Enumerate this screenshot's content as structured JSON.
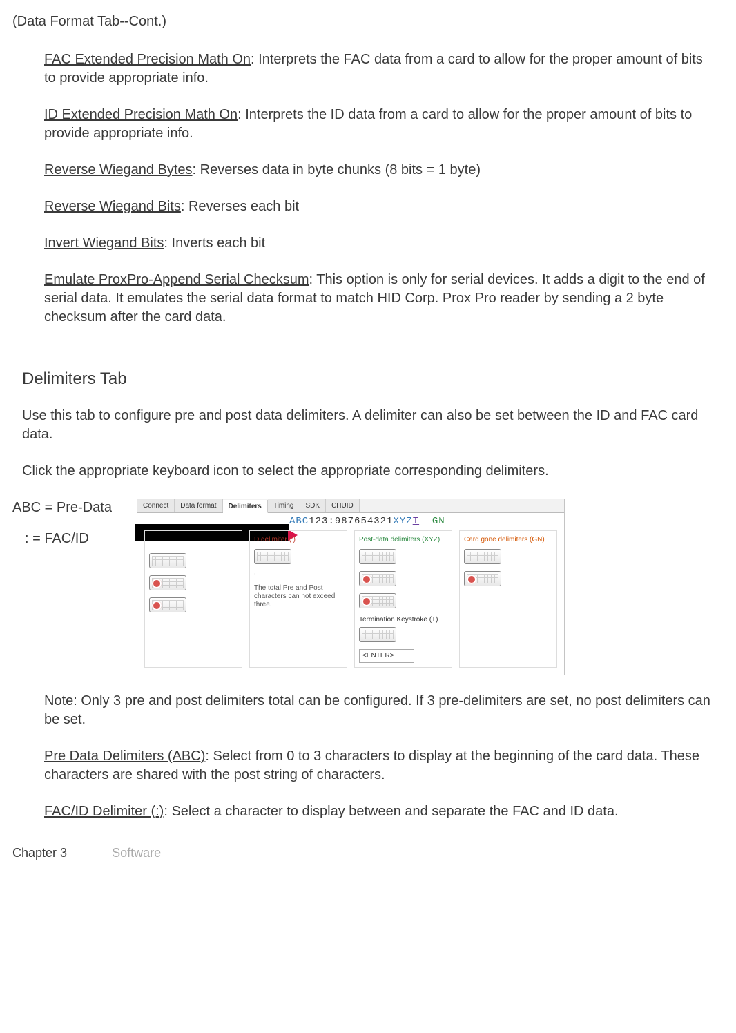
{
  "header": {
    "title": "(Data Format Tab--Cont.)"
  },
  "defs": [
    {
      "term": "FAC Extended Precision Math On",
      "text": ": Interprets the FAC data from a card to allow for the proper amount of bits to provide appropriate info."
    },
    {
      "term": "ID Extended Precision Math On",
      "text": ": Interprets the ID data from a card to allow for the proper amount of bits to provide appropriate info."
    },
    {
      "term": "Reverse Wiegand  Bytes",
      "text": ": Reverses data in byte chunks (8 bits = 1 byte)"
    },
    {
      "term": "Reverse Wiegand  Bits",
      "text": ": Reverses each bit"
    },
    {
      "term": "Invert Wiegand Bits",
      "text": ": Inverts each bit"
    },
    {
      "term": "Emulate ProxPro-Append Serial Checksum",
      "text": ": This option is only for serial devices. It adds a digit to the end of serial data. It emulates the serial data format to match HID Corp. Prox Pro reader by sending a 2 byte checksum after the card data."
    }
  ],
  "heading2": "Delimiters Tab",
  "para1": "Use this tab to configure pre and post data delimiters. A delimiter can also be set between the ID and FAC card data.",
  "para2": "Click the appropriate keyboard icon to select the appropriate corresponding delimiters.",
  "annot": {
    "line1": "ABC = Pre-Data",
    "line2": ": = FAC/ID"
  },
  "screenshot": {
    "tabs": [
      "Connect",
      "Data format",
      "Delimiters",
      "Timing",
      "SDK",
      "CHUID"
    ],
    "active_tab": 2,
    "data_string": {
      "abc": "ABC",
      "num1": "123",
      "colon": ":",
      "num2": "987654321",
      "xyz": "XYZ",
      "t": "T",
      "gn": "  GN"
    },
    "panels": [
      {
        "title": "",
        "class": ""
      },
      {
        "title": "D delimiter (:)",
        "class": "red"
      },
      {
        "title": "Post-data delimiters (XYZ)",
        "class": "grn"
      },
      {
        "title": "Card gone delimiters (GN)",
        "class": "org"
      }
    ],
    "panel_note": "The total Pre and Post characters can not exceed three.",
    "term_label": "Termination Keystroke (T)",
    "enter": "<ENTER>",
    "colon_char": ":"
  },
  "note": "Note: Only 3 pre and post delimiters total can be configured. If 3 pre-delimiters are set, no post delimiters can be set.",
  "defs2": [
    {
      "term": "Pre Data Delimiters (ABC)",
      "text": ": Select from 0 to 3 characters to display at the beginning of the card data. These characters are shared with the post string of characters."
    },
    {
      "term": "FAC/ID Delimiter (:)",
      "text": ": Select a character to display between and separate the FAC and ID data."
    }
  ],
  "footer": {
    "chapter": "Chapter 3",
    "section": "Software"
  }
}
